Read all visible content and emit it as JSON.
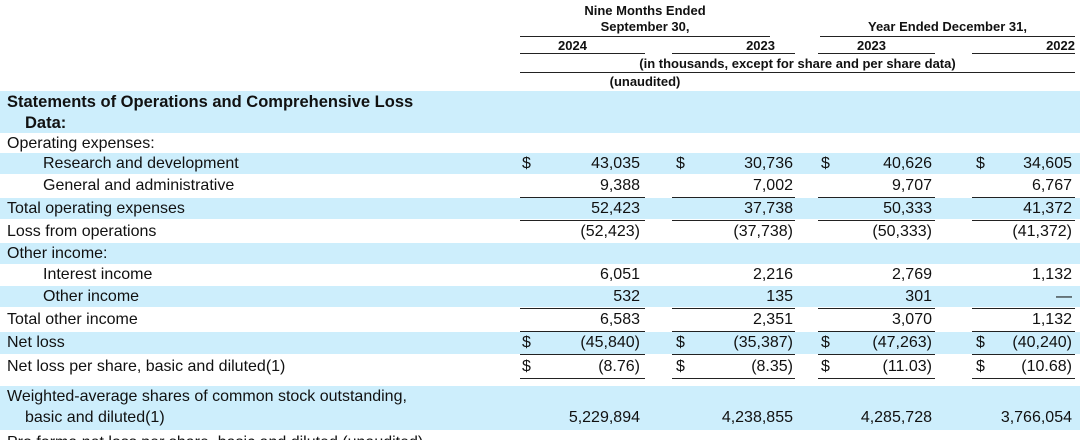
{
  "header": {
    "nine_months": [
      "Nine Months Ended",
      "September 30,"
    ],
    "year_ended": "Year Ended December 31,",
    "years": [
      "2024",
      "2023",
      "2023",
      "2022"
    ],
    "units": "(in thousands, except for share and per share data)",
    "unaudited": "(unaudited)"
  },
  "currency": "$",
  "table": {
    "rows": [
      {
        "label": [
          "Statements of Operations and Comprehensive Loss",
          "Data:"
        ],
        "bold": true
      },
      {
        "label": [
          "Operating expenses:"
        ]
      },
      {
        "label": [
          "Research and development"
        ],
        "values": [
          "43,035",
          "30,736",
          "40,626",
          "34,605"
        ],
        "dollar": true
      },
      {
        "label": [
          "General and administrative"
        ],
        "values": [
          "9,388",
          "7,002",
          "9,707",
          "6,767"
        ]
      },
      {
        "label": [
          "Total operating expenses"
        ],
        "values": [
          "52,423",
          "37,738",
          "50,333",
          "41,372"
        ]
      },
      {
        "label": [
          "Loss from operations"
        ],
        "values": [
          "(52,423)",
          "(37,738)",
          "(50,333)",
          "(41,372)"
        ]
      },
      {
        "label": [
          "Other income:"
        ]
      },
      {
        "label": [
          "Interest income"
        ],
        "values": [
          "6,051",
          "2,216",
          "2,769",
          "1,132"
        ]
      },
      {
        "label": [
          "Other income"
        ],
        "values": [
          "532",
          "135",
          "301",
          "—"
        ]
      },
      {
        "label": [
          "Total other income"
        ],
        "values": [
          "6,583",
          "2,351",
          "3,070",
          "1,132"
        ]
      },
      {
        "label": [
          "Net loss"
        ],
        "values": [
          "(45,840)",
          "(35,387)",
          "(47,263)",
          "(40,240)"
        ],
        "dollar": true
      },
      {
        "label": [
          "Net loss per share, basic and diluted(1)"
        ],
        "values": [
          "(8.76)",
          "(8.35)",
          "(11.03)",
          "(10.68)"
        ],
        "dollar": true
      },
      {
        "label": [
          "Weighted-average shares of common stock outstanding,",
          "basic and diluted(1)"
        ],
        "values": [
          "5,229,894",
          "4,238,855",
          "4,285,728",
          "3,766,054"
        ]
      },
      {
        "label": [
          "Pro forma net loss per share, basic and diluted (unaudited)"
        ]
      }
    ]
  }
}
